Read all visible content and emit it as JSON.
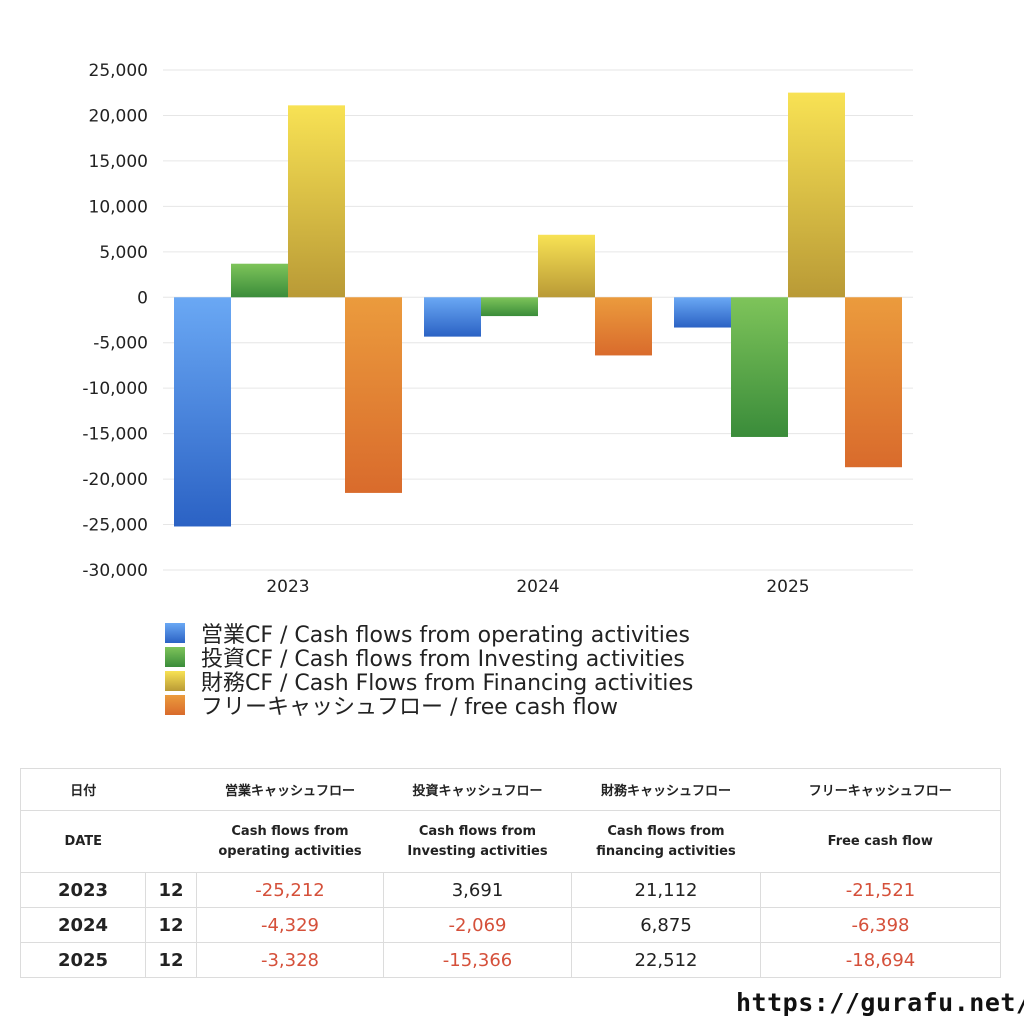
{
  "chart_data": {
    "type": "bar",
    "categories": [
      "2023",
      "2024",
      "2025"
    ],
    "series": [
      {
        "name": "営業CF / Cash flows from operating activities",
        "values": [
          -25212,
          -4329,
          -3328
        ],
        "color_top": "#6aa8f4",
        "color_bottom": "#2b62c4"
      },
      {
        "name": "投資CF / Cash flows from Investing activities",
        "values": [
          3691,
          -2069,
          -15366
        ],
        "color_top": "#7ec45a",
        "color_bottom": "#3a8c3a"
      },
      {
        "name": "財務CF / Cash Flows from Financing activities",
        "values": [
          21112,
          6875,
          22512
        ],
        "color_top": "#f8e254",
        "color_bottom": "#b99a36"
      },
      {
        "name": "フリーキャッシュフロー / free cash flow",
        "values": [
          -21521,
          -6398,
          -18694
        ],
        "color_top": "#eb9b3d",
        "color_bottom": "#d96b2c"
      }
    ],
    "ylim": [
      -30000,
      25000
    ],
    "yticks": [
      "25,000",
      "20,000",
      "15,000",
      "10,000",
      "5,000",
      "0",
      "-5,000",
      "-10,000",
      "-15,000",
      "-20,000",
      "-25,000",
      "-30,000"
    ],
    "grid": true,
    "legend_position": "bottom"
  },
  "table": {
    "headers_jp": [
      "日付",
      "営業キャッシュフロー",
      "投資キャッシュフロー",
      "財務キャッシュフロー",
      "フリーキャッシュフロー"
    ],
    "headers_en": [
      "DATE",
      "Cash flows from\noperating activities",
      "Cash flows from\nInvesting activities",
      "Cash flows from\nfinancing activities",
      "Free cash flow"
    ],
    "rows": [
      {
        "year": "2023",
        "month": "12",
        "values": [
          "-25,212",
          "3,691",
          "21,112",
          "-21,521"
        ]
      },
      {
        "year": "2024",
        "month": "12",
        "values": [
          "-4,329",
          "-2,069",
          "6,875",
          "-6,398"
        ]
      },
      {
        "year": "2025",
        "month": "12",
        "values": [
          "-3,328",
          "-15,366",
          "22,512",
          "-18,694"
        ]
      }
    ]
  },
  "footer": {
    "url": "https://gurafu.net/"
  }
}
